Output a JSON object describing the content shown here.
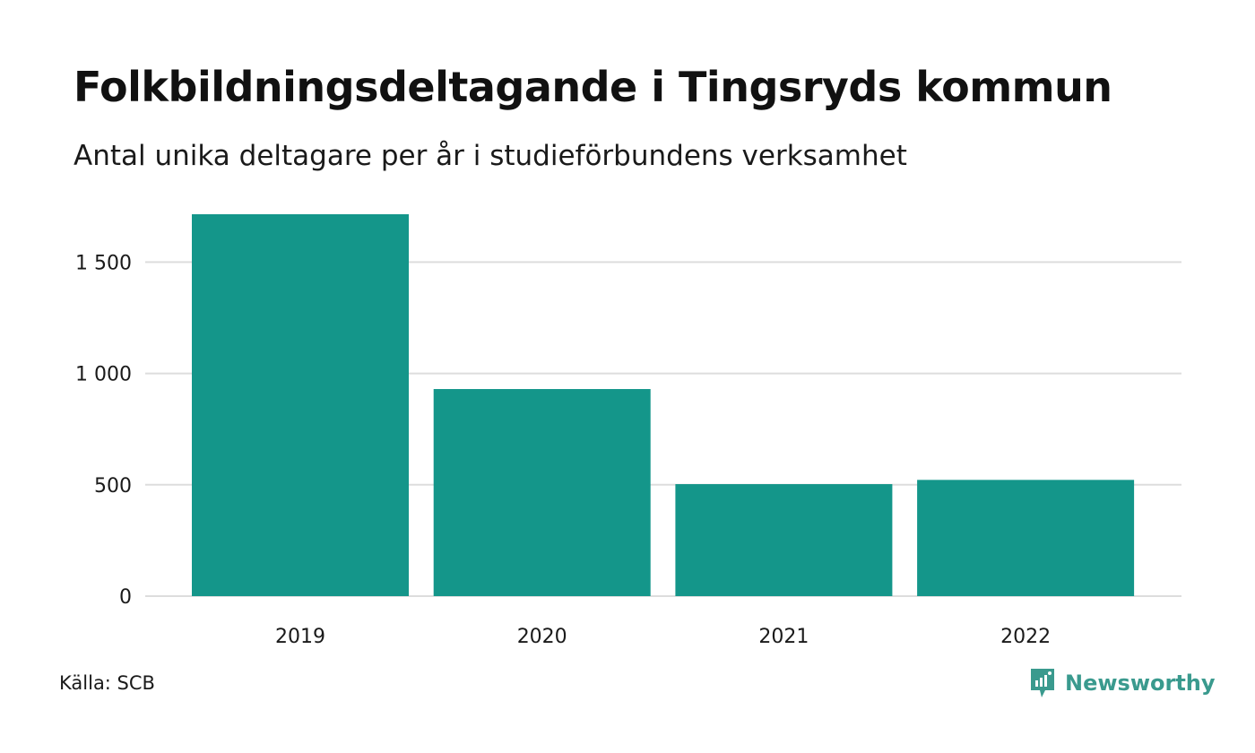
{
  "chart_data": {
    "type": "bar",
    "title": "Folkbildningsdeltagande i Tingsryds kommun",
    "subtitle": "Antal unika deltagare per år i studieförbundens verksamhet",
    "categories": [
      "2019",
      "2020",
      "2021",
      "2022"
    ],
    "values": [
      1715,
      930,
      503,
      522
    ],
    "ylim": [
      0,
      1715
    ],
    "yticks": [
      0,
      500,
      1000,
      1500
    ],
    "ytick_labels": [
      "0",
      "500",
      "1 000",
      "1 500"
    ],
    "xlabel": "",
    "ylabel": "",
    "grid": true,
    "legend": "none"
  },
  "source": "Källa: SCB",
  "brand": {
    "name": "Newsworthy",
    "icon": "newsworthy-logo-icon"
  },
  "colors": {
    "bar": "#14968a",
    "grid": "#dddddd",
    "text": "#111111",
    "brand": "#3a9a8e"
  }
}
